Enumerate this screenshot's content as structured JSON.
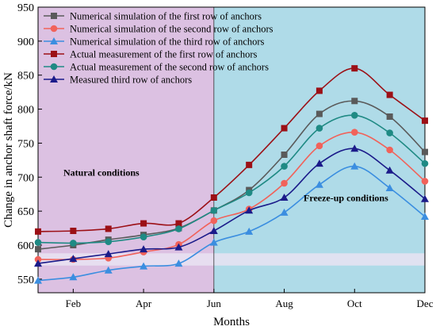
{
  "chart_data": {
    "type": "line",
    "xlabel": "Months",
    "ylabel": "Change in anchor shaft force/kN",
    "x": [
      1.5,
      2.5,
      3.5,
      4.5,
      5.5,
      6.5,
      7.5,
      8.5,
      9.5,
      10.5,
      11.5,
      12.5
    ],
    "xlim": [
      1.5,
      12.5
    ],
    "x_ticks": [
      {
        "value": 2.5,
        "label": "Feb"
      },
      {
        "value": 4.5,
        "label": "Apr"
      },
      {
        "value": 6.5,
        "label": "Jun"
      },
      {
        "value": 8.5,
        "label": "Aug"
      },
      {
        "value": 10.5,
        "label": "Oct"
      },
      {
        "value": 12.5,
        "label": "Dec"
      }
    ],
    "ylim": [
      530,
      950
    ],
    "y_ticks": [
      550,
      600,
      650,
      700,
      750,
      800,
      850,
      900,
      950
    ],
    "grid": false,
    "legend_position": "top-left",
    "regions": [
      {
        "from": 1.5,
        "to": 6.5,
        "color": "#dcc1e2",
        "label": "Natural conditions"
      },
      {
        "from": 6.5,
        "to": 12.5,
        "color": "#afdbe8",
        "label": "Freeze-up conditions"
      }
    ],
    "band": {
      "from": 570,
      "to": 588,
      "color": "#e9e3f2"
    },
    "series": [
      {
        "name": "Numerical simulation of the first row of anchors",
        "color": "#5a5a5a",
        "marker": "square",
        "values": [
          594,
          600,
          608,
          615,
          625,
          651,
          681,
          733,
          793,
          812,
          789,
          737
        ]
      },
      {
        "name": "Numerical simulation of the second row of anchors",
        "color": "#f1625a",
        "marker": "circle",
        "values": [
          579,
          579,
          581,
          590,
          601,
          636,
          653,
          691,
          746,
          766,
          740,
          694
        ]
      },
      {
        "name": "Numerical simulation of the third row of anchors",
        "color": "#3b8ee0",
        "marker": "triangle",
        "values": [
          548,
          553,
          563,
          569,
          573,
          604,
          620,
          648,
          689,
          716,
          684,
          642
        ]
      },
      {
        "name": "Actual measurement of the first row of anchors",
        "color": "#9c1016",
        "marker": "square",
        "values": [
          620,
          621,
          624,
          632,
          632,
          670,
          718,
          772,
          827,
          860,
          821,
          783
        ]
      },
      {
        "name": "Actual measurement of the second row of anchors",
        "color": "#1f8a84",
        "marker": "circle",
        "values": [
          604,
          603,
          605,
          612,
          624,
          651,
          677,
          716,
          772,
          791,
          765,
          720
        ]
      },
      {
        "name": "Measured third row of anchors",
        "color": "#1b1b8a",
        "marker": "triangle",
        "values": [
          573,
          580,
          587,
          594,
          597,
          621,
          651,
          670,
          720,
          742,
          710,
          668
        ]
      }
    ]
  }
}
